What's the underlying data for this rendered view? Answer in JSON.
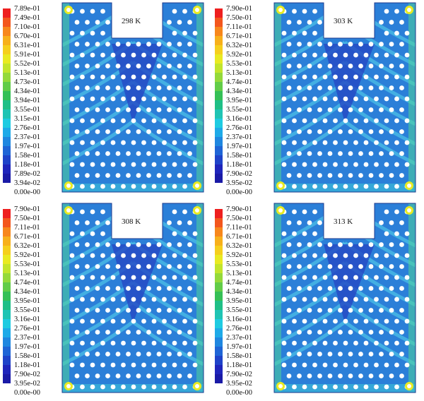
{
  "legend_colors": [
    "#ee1f1f",
    "#f3561d",
    "#f7871c",
    "#f7b01b",
    "#f5cf1d",
    "#e9ea22",
    "#c2e52c",
    "#94d93a",
    "#62cc48",
    "#35c056",
    "#1fbf86",
    "#1fc4b4",
    "#1fcbe1",
    "#1eaae8",
    "#1f87e0",
    "#1f65d6",
    "#1f43c9",
    "#1f25bb",
    "#1a1aa6"
  ],
  "panels": [
    {
      "temperature": "298 K",
      "legend": [
        "7.89e-01",
        "7.49e-01",
        "7.10e-01",
        "6.70e-01",
        "6.31e-01",
        "5.91e-01",
        "5.52e-01",
        "5.13e-01",
        "4.73e-01",
        "4.34e-01",
        "3.94e-01",
        "3.55e-01",
        "3.15e-01",
        "2.76e-01",
        "2.37e-01",
        "1.97e-01",
        "1.58e-01",
        "1.18e-01",
        "7.89e-02",
        "3.94e-02",
        "0.00e-00"
      ]
    },
    {
      "temperature": "303 K",
      "legend": [
        "7.90e-01",
        "7.50e-01",
        "7.11e-01",
        "6.71e-01",
        "6.32e-01",
        "5.92e-01",
        "5.53e-01",
        "5.13e-01",
        "4.74e-01",
        "4.34e-01",
        "3.95e-01",
        "3.55e-01",
        "3.16e-01",
        "2.76e-01",
        "2.37e-01",
        "1.97e-01",
        "1.58e-01",
        "1.18e-01",
        "7.90e-02",
        "3.95e-02",
        "0.00e-00"
      ]
    },
    {
      "temperature": "308 K",
      "legend": [
        "7.90e-01",
        "7.50e-01",
        "7.11e-01",
        "6.71e-01",
        "6.32e-01",
        "5.92e-01",
        "5.53e-01",
        "5.13e-01",
        "4.74e-01",
        "4.34e-01",
        "3.95e-01",
        "3.55e-01",
        "3.16e-01",
        "2.76e-01",
        "2.37e-01",
        "1.97e-01",
        "1.58e-01",
        "1.18e-01",
        "7.90e-02",
        "3.95e-02",
        "0.00e-00"
      ]
    },
    {
      "temperature": "313 K",
      "legend": [
        "7.90e-01",
        "7.50e-01",
        "7.11e-01",
        "6.71e-01",
        "6.32e-01",
        "5.92e-01",
        "5.53e-01",
        "5.13e-01",
        "4.74e-01",
        "4.34e-01",
        "3.95e-01",
        "3.55e-01",
        "3.16e-01",
        "2.76e-01",
        "2.37e-01",
        "1.97e-01",
        "1.58e-01",
        "1.18e-01",
        "7.90e-02",
        "3.95e-02",
        "0.00e-00"
      ]
    }
  ]
}
